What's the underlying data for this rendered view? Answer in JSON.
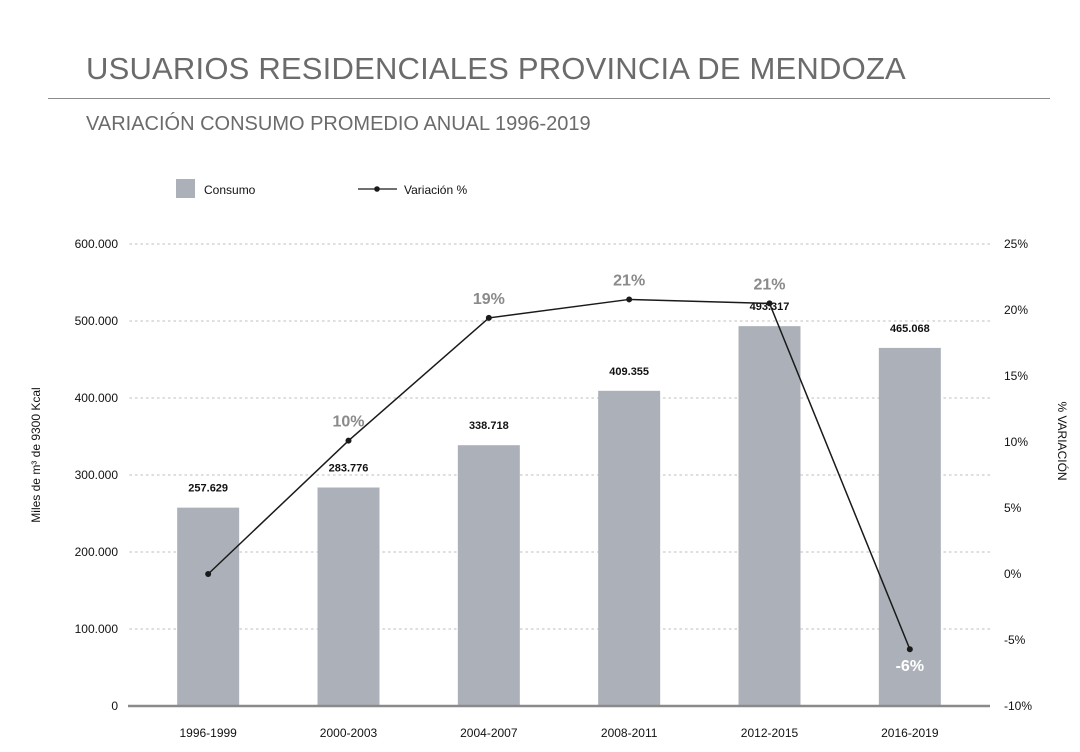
{
  "title": "USUARIOS RESIDENCIALES PROVINCIA DE MENDOZA",
  "subtitle": "VARIACIÓN CONSUMO PROMEDIO ANUAL 1996-2019",
  "colors": {
    "bar": "#acb1b9",
    "line": "#1a1a1a",
    "text": "#6b6b6b",
    "grid": "#c9c9c9",
    "axis": "#8a8a8a"
  },
  "chart_data": {
    "type": "bar",
    "categories": [
      "1996-1999",
      "2000-2003",
      "2004-2007",
      "2008-2011",
      "2012-2015",
      "2016-2019"
    ],
    "ylabel": "Miles de m³ de 9300 Kcal",
    "y2label": "% VARIACIÓN",
    "ylim": [
      0,
      600000
    ],
    "y2lim": [
      -10,
      25
    ],
    "yticks": [
      "0",
      "100.000",
      "200.000",
      "300.000",
      "400.000",
      "500.000",
      "600.000"
    ],
    "y2ticks": [
      "-10%",
      "-5%",
      "0%",
      "5%",
      "10%",
      "15%",
      "20%",
      "25%"
    ],
    "grid": true,
    "legend_position": "top-left",
    "series": [
      {
        "name": "Consumo",
        "type": "bar",
        "axis": "left",
        "values": [
          257629,
          283776,
          338718,
          409355,
          493317,
          465068
        ],
        "labels": [
          "257.629",
          "283.776",
          "338.718",
          "409.355",
          "493.317",
          "465.068"
        ]
      },
      {
        "name": "Variación %",
        "type": "line",
        "axis": "right",
        "values": [
          0,
          10.1,
          19.4,
          20.8,
          20.5,
          -5.7
        ],
        "labels": [
          "",
          "10%",
          "19%",
          "21%",
          "21%",
          "-6%"
        ]
      }
    ]
  }
}
